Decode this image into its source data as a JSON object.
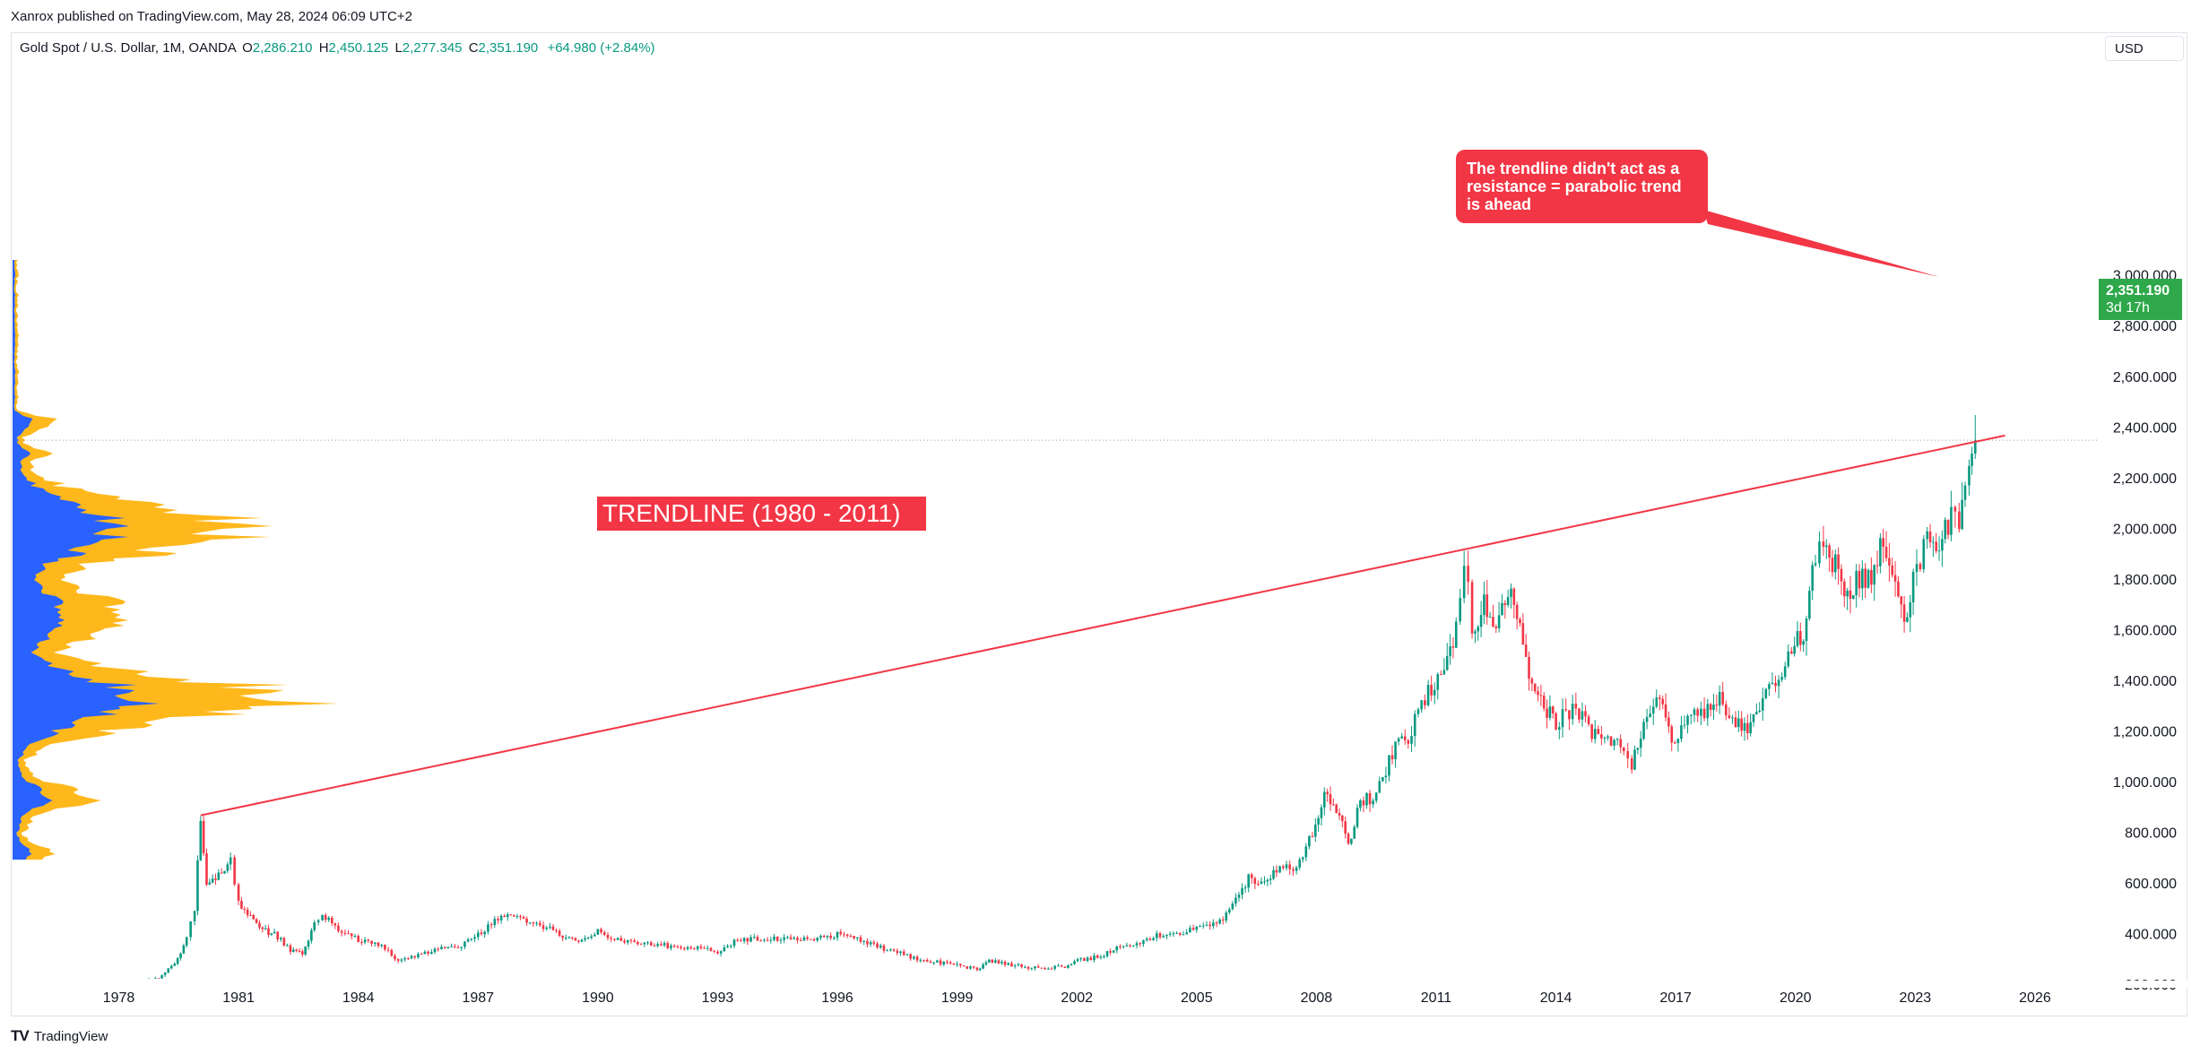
{
  "header": {
    "published_by": "Xanrox published on TradingView.com, May 28, 2024 06:09 UTC+2"
  },
  "legend": {
    "symbol": "Gold Spot / U.S. Dollar, 1M, OANDA",
    "open_key": "O",
    "open": "2,286.210",
    "high_key": "H",
    "high": "2,450.125",
    "low_key": "L",
    "low": "2,277.345",
    "close_key": "C",
    "close": "2,351.190",
    "change": "+64.980 (+2.84%)"
  },
  "currency": "USD",
  "price_tag": {
    "price": "2,351.190",
    "countdown": "3d 17h"
  },
  "annotations": {
    "trendline_label": "TRENDLINE (1980 - 2011)",
    "callout_lines": [
      "The trendline didn't act as a",
      "resistance = parabolic trend",
      "is ahead"
    ]
  },
  "footer": {
    "brand": "TradingView"
  },
  "colors": {
    "up": "#089981",
    "down": "#f23645",
    "annotation": "#f23645",
    "price_tag": "#2ea84a",
    "volume_blue": "#2962ff",
    "volume_yellow": "#ffb81c"
  },
  "chart_data": {
    "type": "candlestick",
    "x_ticks": [
      "1978",
      "1981",
      "1984",
      "1987",
      "1990",
      "1993",
      "1996",
      "1999",
      "2002",
      "2005",
      "2008",
      "2011",
      "2014",
      "2017",
      "2020",
      "2023",
      "2026"
    ],
    "y_ticks": [
      "200.000",
      "400.000",
      "600.000",
      "800.000",
      "1,000.000",
      "1,200.000",
      "1,400.000",
      "1,600.000",
      "1,800.000",
      "2,000.000",
      "2,200.000",
      "2,400.000",
      "2,600.000",
      "2,800.000",
      "3,000.000"
    ],
    "xlim": [
      1976.5,
      2028.0
    ],
    "ylim": [
      190,
      3080
    ],
    "last_price": 2351.19,
    "series": [
      {
        "values": [
          [
            1978.0,
            185
          ],
          [
            1978.5,
            205
          ],
          [
            1979.0,
            230
          ],
          [
            1979.4,
            280
          ],
          [
            1979.7,
            380
          ],
          [
            1979.9,
            500
          ],
          [
            1980.05,
            870
          ],
          [
            1980.2,
            590
          ],
          [
            1980.5,
            640
          ],
          [
            1980.8,
            690
          ],
          [
            1981.0,
            530
          ],
          [
            1981.3,
            470
          ],
          [
            1981.6,
            420
          ],
          [
            1981.9,
            400
          ],
          [
            1982.3,
            340
          ],
          [
            1982.6,
            320
          ],
          [
            1982.9,
            440
          ],
          [
            1983.1,
            480
          ],
          [
            1983.5,
            420
          ],
          [
            1984.0,
            380
          ],
          [
            1984.5,
            360
          ],
          [
            1985.0,
            300
          ],
          [
            1985.5,
            320
          ],
          [
            1986.0,
            340
          ],
          [
            1986.5,
            350
          ],
          [
            1987.0,
            400
          ],
          [
            1987.5,
            460
          ],
          [
            1987.9,
            480
          ],
          [
            1988.3,
            440
          ],
          [
            1988.8,
            420
          ],
          [
            1989.2,
            390
          ],
          [
            1989.6,
            370
          ],
          [
            1990.0,
            410
          ],
          [
            1990.5,
            380
          ],
          [
            1991.0,
            370
          ],
          [
            1991.5,
            360
          ],
          [
            1992.0,
            350
          ],
          [
            1992.5,
            345
          ],
          [
            1993.0,
            330
          ],
          [
            1993.5,
            380
          ],
          [
            1994.0,
            385
          ],
          [
            1994.5,
            380
          ],
          [
            1995.0,
            380
          ],
          [
            1995.5,
            385
          ],
          [
            1996.0,
            400
          ],
          [
            1996.5,
            385
          ],
          [
            1997.0,
            350
          ],
          [
            1997.5,
            330
          ],
          [
            1998.0,
            300
          ],
          [
            1998.5,
            290
          ],
          [
            1999.0,
            285
          ],
          [
            1999.5,
            260
          ],
          [
            1999.8,
            300
          ],
          [
            2000.2,
            285
          ],
          [
            2000.7,
            270
          ],
          [
            2001.2,
            265
          ],
          [
            2001.7,
            275
          ],
          [
            2002.1,
            300
          ],
          [
            2002.6,
            315
          ],
          [
            2003.0,
            350
          ],
          [
            2003.5,
            360
          ],
          [
            2004.0,
            400
          ],
          [
            2004.5,
            400
          ],
          [
            2005.0,
            430
          ],
          [
            2005.5,
            440
          ],
          [
            2005.9,
            510
          ],
          [
            2006.3,
            620
          ],
          [
            2006.7,
            600
          ],
          [
            2007.0,
            650
          ],
          [
            2007.5,
            670
          ],
          [
            2007.9,
            800
          ],
          [
            2008.2,
            940
          ],
          [
            2008.5,
            900
          ],
          [
            2008.8,
            750
          ],
          [
            2009.1,
            920
          ],
          [
            2009.5,
            950
          ],
          [
            2009.9,
            1120
          ],
          [
            2010.3,
            1180
          ],
          [
            2010.8,
            1350
          ],
          [
            2011.2,
            1450
          ],
          [
            2011.5,
            1600
          ],
          [
            2011.7,
            1900
          ],
          [
            2011.9,
            1600
          ],
          [
            2012.2,
            1700
          ],
          [
            2012.5,
            1600
          ],
          [
            2012.8,
            1750
          ],
          [
            2013.1,
            1650
          ],
          [
            2013.4,
            1380
          ],
          [
            2013.7,
            1300
          ],
          [
            2014.0,
            1240
          ],
          [
            2014.5,
            1300
          ],
          [
            2014.9,
            1200
          ],
          [
            2015.3,
            1180
          ],
          [
            2015.7,
            1120
          ],
          [
            2015.9,
            1060
          ],
          [
            2016.2,
            1240
          ],
          [
            2016.6,
            1320
          ],
          [
            2016.9,
            1150
          ],
          [
            2017.3,
            1260
          ],
          [
            2017.8,
            1280
          ],
          [
            2018.1,
            1330
          ],
          [
            2018.5,
            1250
          ],
          [
            2018.8,
            1200
          ],
          [
            2019.1,
            1300
          ],
          [
            2019.5,
            1420
          ],
          [
            2019.9,
            1510
          ],
          [
            2020.2,
            1600
          ],
          [
            2020.5,
            1900
          ],
          [
            2020.7,
            1950
          ],
          [
            2021.0,
            1850
          ],
          [
            2021.3,
            1760
          ],
          [
            2021.6,
            1800
          ],
          [
            2021.9,
            1800
          ],
          [
            2022.2,
            1950
          ],
          [
            2022.5,
            1800
          ],
          [
            2022.8,
            1640
          ],
          [
            2022.95,
            1800
          ],
          [
            2023.3,
            1950
          ],
          [
            2023.6,
            1920
          ],
          [
            2023.9,
            2060
          ],
          [
            2024.1,
            2040
          ],
          [
            2024.25,
            2230
          ],
          [
            2024.35,
            2290
          ],
          [
            2024.42,
            2351
          ]
        ]
      }
    ]
  }
}
